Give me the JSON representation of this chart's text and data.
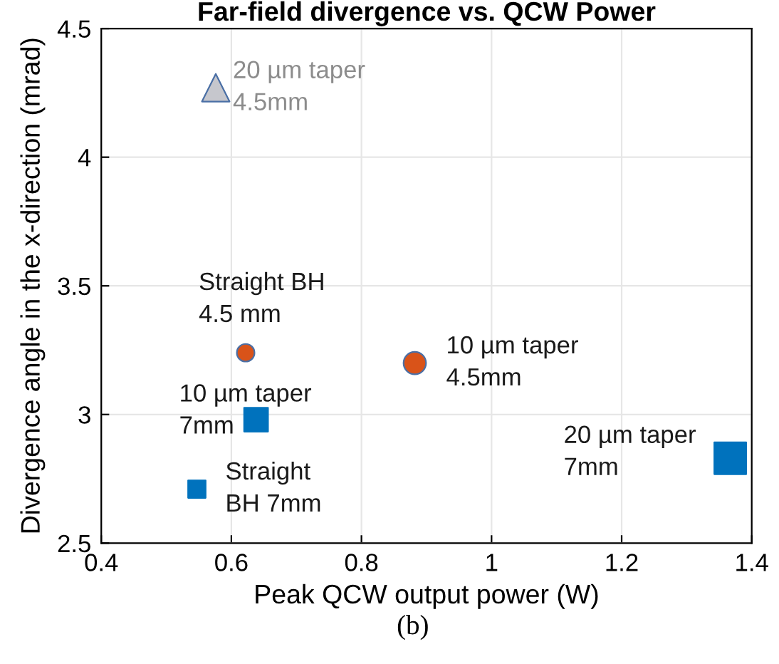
{
  "chart_data": {
    "type": "bubble",
    "title": "Far-field divergence vs. QCW Power",
    "xlabel": "Peak QCW output power (W)",
    "ylabel": "Divergence angle in the x-direction (mrad)",
    "annotations": [
      "(b)"
    ],
    "xlim": [
      0.4,
      1.4
    ],
    "xticks": [
      0.4,
      0.6,
      0.8,
      1,
      1.2,
      1.4
    ],
    "ylim": [
      2.5,
      4.5
    ],
    "yticks": [
      2.5,
      3,
      3.5,
      4,
      4.5
    ],
    "grid": true,
    "series": [
      {
        "name": "20 µm taper\n4.5mm",
        "color": "#c6c7cd",
        "marker": "triangle",
        "x": [
          0.576
        ],
        "values": [
          4.27
        ],
        "sizes": [
          0.375
        ]
      },
      {
        "name": "Straight BH\n4.5 mm",
        "color": "#d95319",
        "marker": "circle",
        "x": [
          0.622
        ],
        "values": [
          3.24
        ],
        "sizes": [
          0.24
        ]
      },
      {
        "name": "10 µm taper\n4.5mm",
        "color": "#d95319",
        "marker": "circle",
        "x": [
          0.882
        ],
        "values": [
          3.2
        ],
        "sizes": [
          0.39
        ]
      },
      {
        "name": "10 µm taper\n7mm",
        "color": "#0072bd",
        "marker": "square",
        "x": [
          0.638
        ],
        "values": [
          2.98
        ],
        "sizes": [
          0.56
        ]
      },
      {
        "name": "Straight\nBH 7mm",
        "color": "#0072bd",
        "marker": "square",
        "x": [
          0.547
        ],
        "values": [
          2.71
        ],
        "sizes": [
          0.3
        ]
      },
      {
        "name": "20 µm taper\n7mm",
        "color": "#0072bd",
        "marker": "square",
        "x": [
          1.367
        ],
        "values": [
          2.83
        ],
        "sizes": [
          1
        ]
      }
    ]
  }
}
